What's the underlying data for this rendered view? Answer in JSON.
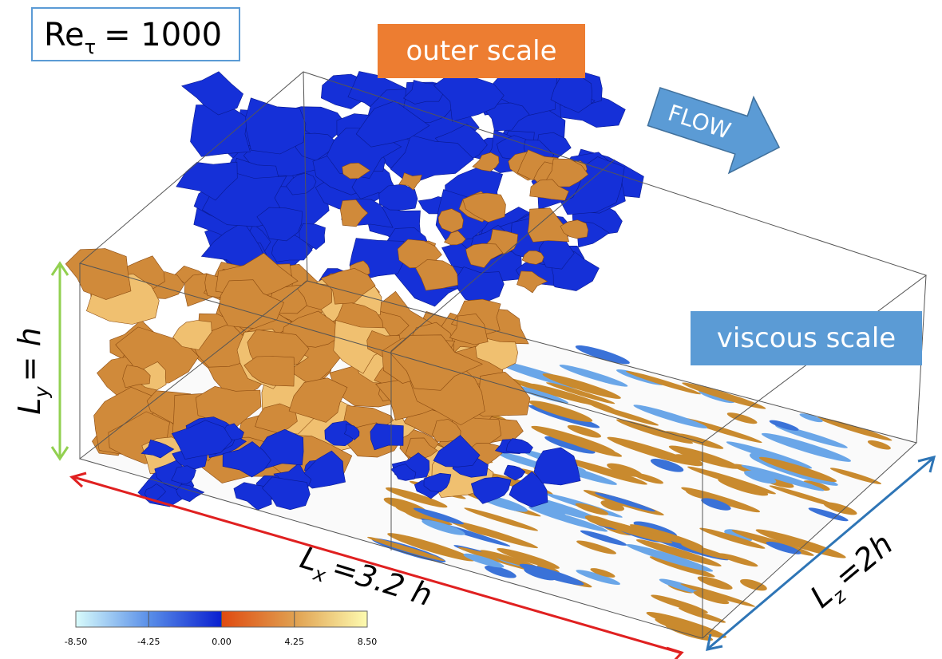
{
  "labels": {
    "reynolds": {
      "base": "Re",
      "sub": "τ",
      "rest": "= 1000"
    },
    "outer": "outer scale",
    "flow": "FLOW",
    "viscous": "viscous scale",
    "ly": {
      "base": "L",
      "sub": "y",
      "rest": "= h"
    },
    "lx": {
      "base": "L",
      "sub": "x",
      "rest": "=3.2 h"
    },
    "lz": {
      "base": "L",
      "sub": "z",
      "rest": "=2h"
    }
  },
  "colorbar": {
    "ticks": [
      "-8.50",
      "-4.25",
      "0.00",
      "4.25",
      "8.50"
    ]
  }
}
